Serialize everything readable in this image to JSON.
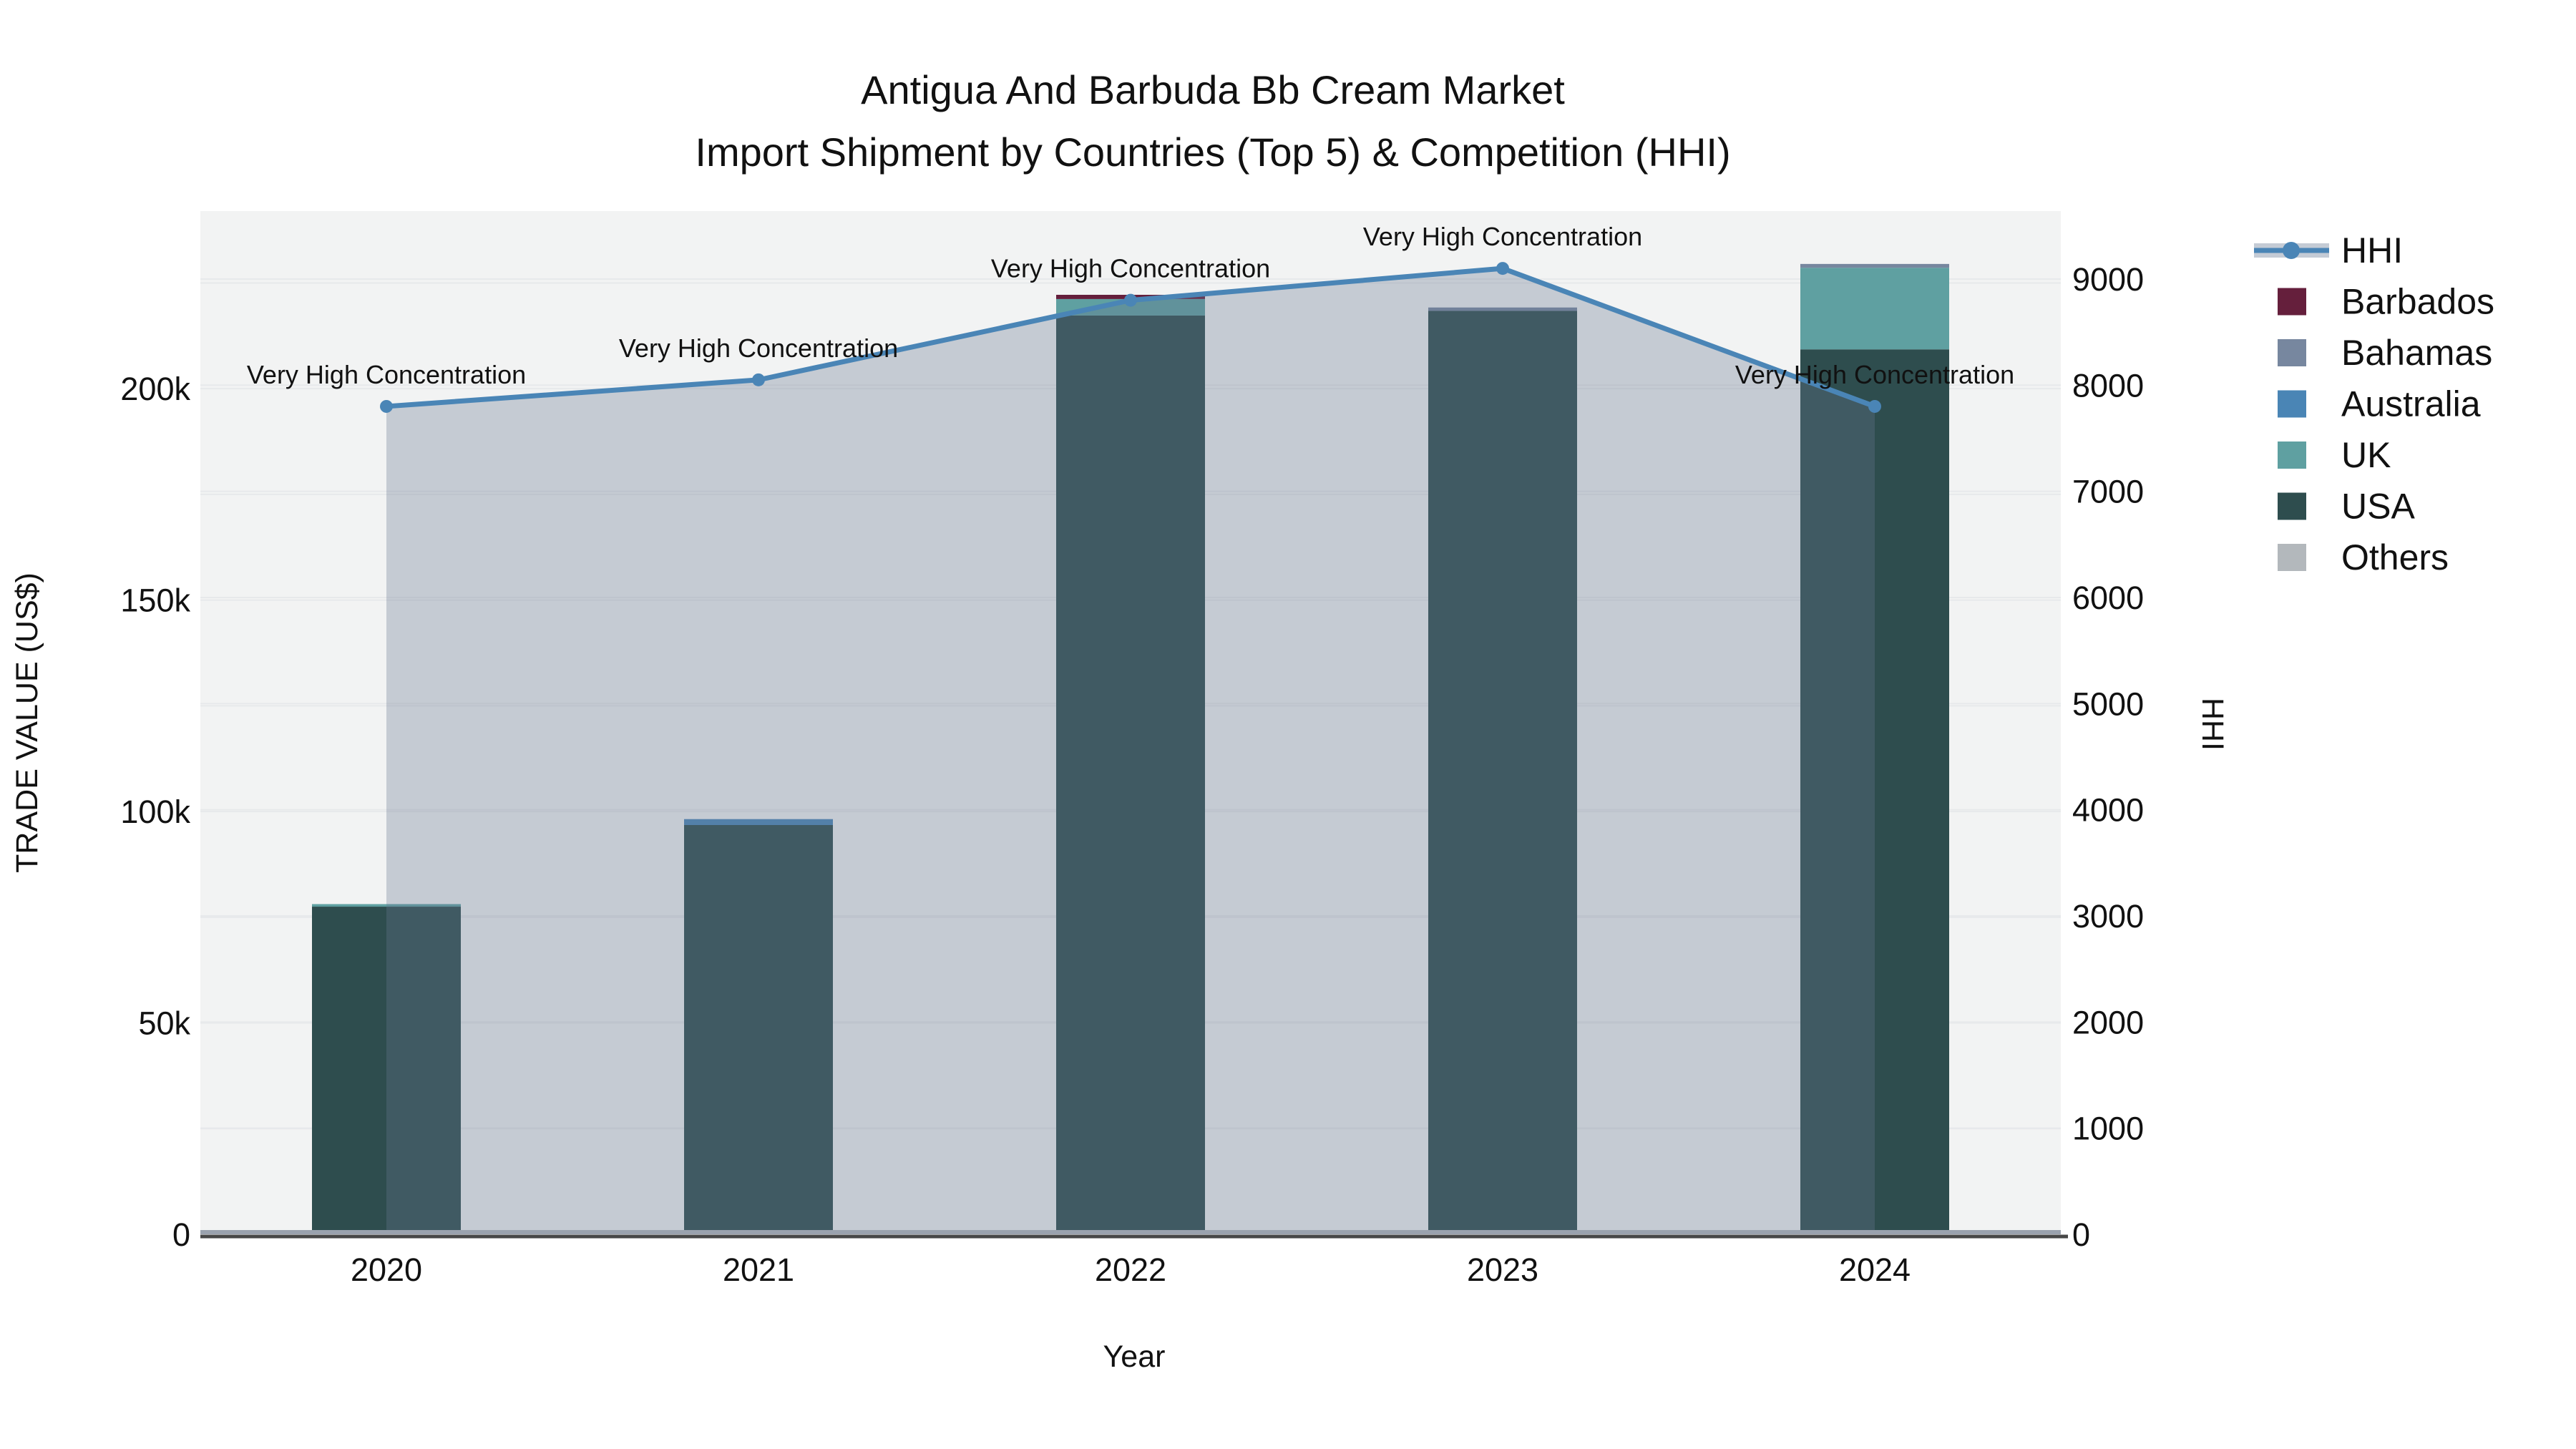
{
  "title": {
    "line1": "Antigua And Barbuda Bb Cream Market",
    "line2": "Import Shipment by Countries (Top 5) & Competition (HHI)"
  },
  "axes": {
    "x": {
      "title": "Year",
      "categories": [
        "2020",
        "2021",
        "2022",
        "2023",
        "2024"
      ]
    },
    "left": {
      "title": "TRADE VALUE (US$)",
      "ticks": [
        {
          "label": "0",
          "value": 0
        },
        {
          "label": "50k",
          "value": 50000
        },
        {
          "label": "100k",
          "value": 100000
        },
        {
          "label": "150k",
          "value": 150000
        },
        {
          "label": "200k",
          "value": 200000
        }
      ]
    },
    "right": {
      "title": "HHI",
      "ticks": [
        {
          "label": "0",
          "value": 0
        },
        {
          "label": "1000",
          "value": 1000
        },
        {
          "label": "2000",
          "value": 2000
        },
        {
          "label": "3000",
          "value": 3000
        },
        {
          "label": "4000",
          "value": 4000
        },
        {
          "label": "5000",
          "value": 5000
        },
        {
          "label": "6000",
          "value": 6000
        },
        {
          "label": "7000",
          "value": 7000
        },
        {
          "label": "8000",
          "value": 8000
        },
        {
          "label": "9000",
          "value": 9000
        }
      ]
    }
  },
  "legend": {
    "items": [
      {
        "label": "HHI",
        "type": "line",
        "color": "#4a85b6"
      },
      {
        "label": "Barbados",
        "type": "swatch",
        "color": "#651f3c"
      },
      {
        "label": "Bahamas",
        "type": "swatch",
        "color": "#77879f"
      },
      {
        "label": "Australia",
        "type": "swatch",
        "color": "#4a85b5"
      },
      {
        "label": "UK",
        "type": "swatch",
        "color": "#5fa0a1"
      },
      {
        "label": "USA",
        "type": "swatch",
        "color": "#2e4d4e"
      },
      {
        "label": "Others",
        "type": "swatch",
        "color": "#b3b8bc"
      }
    ]
  },
  "chart_data": {
    "type": "bar+line",
    "title": "Antigua And Barbuda Bb Cream Market Import Shipment by Countries (Top 5) & Competition (HHI)",
    "xlabel": "Year",
    "categories": [
      "2020",
      "2021",
      "2022",
      "2023",
      "2024"
    ],
    "bar_stack_order_bottom_to_top": [
      "Others",
      "USA",
      "UK",
      "Australia",
      "Bahamas",
      "Barbados"
    ],
    "bar_series": [
      {
        "name": "Others",
        "color": "#b3b8bc",
        "values": [
          0,
          0,
          0,
          0,
          0
        ]
      },
      {
        "name": "USA",
        "color": "#2e4d4e",
        "values": [
          77500,
          96800,
          217300,
          218400,
          209300
        ]
      },
      {
        "name": "UK",
        "color": "#5fa0a1",
        "values": [
          600,
          0,
          3900,
          0,
          19300
        ]
      },
      {
        "name": "Australia",
        "color": "#4a85b5",
        "values": [
          0,
          1400,
          0,
          0,
          0
        ]
      },
      {
        "name": "Bahamas",
        "color": "#77879f",
        "values": [
          0,
          0,
          0,
          800,
          900
        ]
      },
      {
        "name": "Barbados",
        "color": "#651f3c",
        "values": [
          0,
          0,
          1000,
          0,
          0
        ]
      }
    ],
    "bar_totals": [
      78100,
      98200,
      222200,
      219200,
      229500
    ],
    "line_series": {
      "name": "HHI",
      "axis": "right",
      "color": "#4a85b6",
      "fill_color": "rgba(103,119,144,0.32)",
      "values": [
        7800,
        8050,
        8800,
        9100,
        7800
      ],
      "point_annotations": [
        "Very High Concentration",
        "Very High Concentration",
        "Very High Concentration",
        "Very High Concentration",
        "Very High Concentration"
      ]
    },
    "left_axis": {
      "label": "TRADE VALUE (US$)",
      "range": [
        0,
        242000
      ],
      "gridline_step": 25000
    },
    "right_axis": {
      "label": "HHI",
      "range": [
        0,
        9640
      ],
      "gridline_step": 1000
    },
    "grid": true,
    "legend_position": "outside-right-top"
  },
  "colors": {
    "plot_background": "#f2f3f3",
    "page_background": "#ffffff",
    "gridline": "#e7e9eb",
    "zeroline": "#9aa2ae",
    "axis_line": "#474747",
    "text": "#111111"
  }
}
